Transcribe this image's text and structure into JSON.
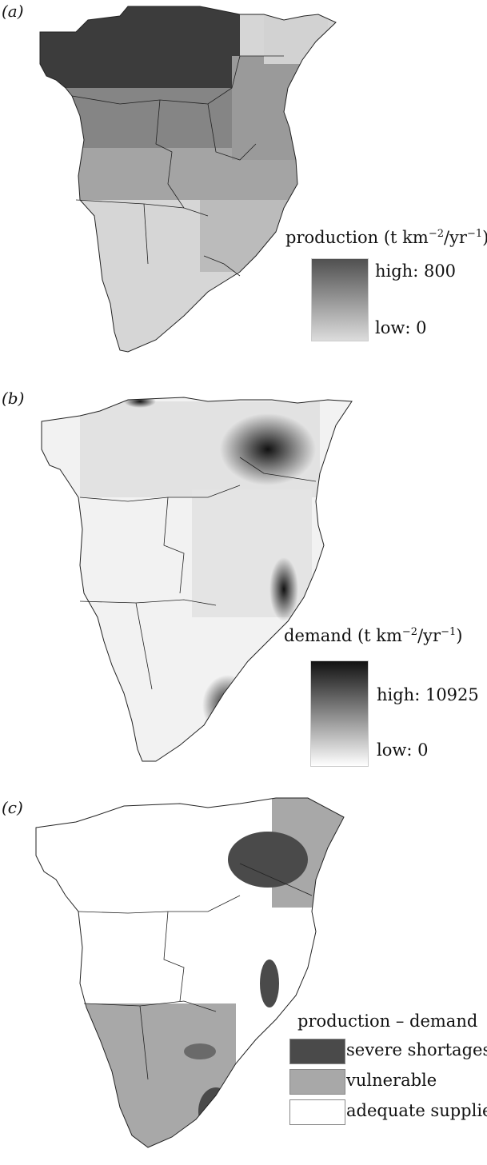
{
  "panels": {
    "a": {
      "label": "(a)",
      "legend_title_prefix": "production (t km",
      "legend_title_exp1": "−2",
      "legend_title_mid": "/yr",
      "legend_title_exp2": "−1",
      "legend_title_suffix": ")",
      "high_label": "high: 800",
      "low_label": "low: 0",
      "ramp_colors": [
        "#505050",
        "#dcdcdc"
      ]
    },
    "b": {
      "label": "(b)",
      "legend_title_prefix": "demand (t km",
      "legend_title_exp1": "−2",
      "legend_title_mid": "/yr",
      "legend_title_exp2": "−1",
      "legend_title_suffix": ")",
      "high_label": "high: 10925",
      "low_label": "low: 0",
      "ramp_colors": [
        "#111111",
        "#ffffff"
      ]
    },
    "c": {
      "label": "(c)",
      "legend_title": "production – demand",
      "categories": [
        {
          "label": "severe shortages",
          "color": "#4a4a4a"
        },
        {
          "label": "vulnerable",
          "color": "#a8a8a8"
        },
        {
          "label": "adequate supplies",
          "color": "#ffffff"
        }
      ]
    }
  }
}
